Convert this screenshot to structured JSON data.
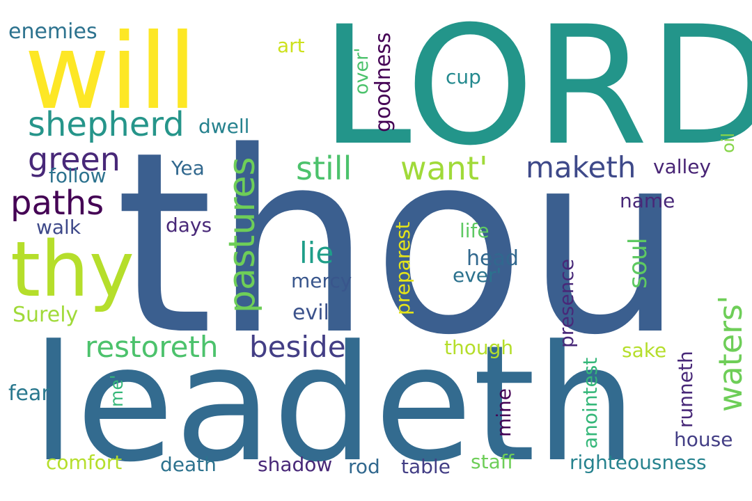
{
  "palette": {
    "yellow": "#fde725",
    "lime": "#b5de2b",
    "green": "#6ece58",
    "mint": "#35b779",
    "teal": "#1f9e89",
    "cyan": "#26828e",
    "steel": "#31688e",
    "blue": "#3e4989",
    "purple": "#482878",
    "deep": "#440154"
  },
  "words": [
    {
      "text": "thou",
      "color": "#3b5f8f"
    },
    {
      "text": "leadeth",
      "color": "#336b8f"
    },
    {
      "text": "LORD",
      "color": "#23958a"
    },
    {
      "text": "will",
      "color": "#fde725"
    },
    {
      "text": "thy",
      "color": "#b5de2b"
    },
    {
      "text": "shepherd",
      "color": "#26958a"
    },
    {
      "text": "green",
      "color": "#482878"
    },
    {
      "text": "paths",
      "color": "#440154"
    },
    {
      "text": "pastures",
      "color": "#6ece58"
    },
    {
      "text": "still",
      "color": "#4cc26c"
    },
    {
      "text": "want'",
      "color": "#a0da39"
    },
    {
      "text": "maketh",
      "color": "#3e4989"
    },
    {
      "text": "restoreth",
      "color": "#4cc26c"
    },
    {
      "text": "beside",
      "color": "#433e85"
    },
    {
      "text": "lie",
      "color": "#1f9e89"
    },
    {
      "text": "waters'",
      "color": "#6ece58"
    },
    {
      "text": "soul",
      "color": "#5ec962"
    },
    {
      "text": "enemies",
      "color": "#2c728e"
    },
    {
      "text": "art",
      "color": "#cde11d"
    },
    {
      "text": "goodness",
      "color": "#440154"
    },
    {
      "text": "over'",
      "color": "#4cc26c"
    },
    {
      "text": "cup",
      "color": "#23898e"
    },
    {
      "text": "dwell",
      "color": "#26828e"
    },
    {
      "text": "oil",
      "color": "#86d549"
    },
    {
      "text": "follow",
      "color": "#2c728e"
    },
    {
      "text": "Yea",
      "color": "#31688e"
    },
    {
      "text": "valley",
      "color": "#482475"
    },
    {
      "text": "name",
      "color": "#482878"
    },
    {
      "text": "walk",
      "color": "#3e4989"
    },
    {
      "text": "days",
      "color": "#482878"
    },
    {
      "text": "life",
      "color": "#5ec962"
    },
    {
      "text": "head",
      "color": "#31688e"
    },
    {
      "text": "preparest",
      "color": "#e5e419"
    },
    {
      "text": "mercy",
      "color": "#39568c"
    },
    {
      "text": "ever'",
      "color": "#2c728e"
    },
    {
      "text": "presence",
      "color": "#482878"
    },
    {
      "text": "Surely",
      "color": "#a0da39"
    },
    {
      "text": "evil",
      "color": "#3b528b"
    },
    {
      "text": "though",
      "color": "#b5de2b"
    },
    {
      "text": "sake",
      "color": "#b5de2b"
    },
    {
      "text": "me'",
      "color": "#35b779"
    },
    {
      "text": "fear",
      "color": "#2a788e"
    },
    {
      "text": "anointest",
      "color": "#35b779"
    },
    {
      "text": "runneth",
      "color": "#482878"
    },
    {
      "text": "mine",
      "color": "#440154"
    },
    {
      "text": "house",
      "color": "#433e85"
    },
    {
      "text": "comfort",
      "color": "#b5de2b"
    },
    {
      "text": "death",
      "color": "#2c728e"
    },
    {
      "text": "shadow",
      "color": "#482878"
    },
    {
      "text": "rod",
      "color": "#31688e"
    },
    {
      "text": "table",
      "color": "#433e85"
    },
    {
      "text": "staff",
      "color": "#6ece58"
    },
    {
      "text": "righteousness",
      "color": "#26828e"
    }
  ]
}
